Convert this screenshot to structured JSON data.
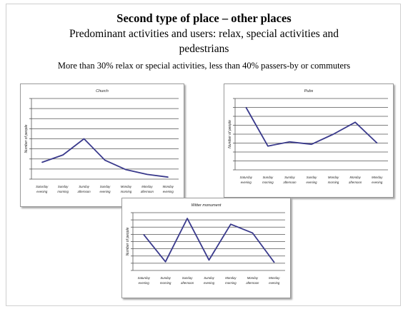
{
  "slide": {
    "title": "Second type of place – other places",
    "subtitle_line1": "Predominant activities and users: relax, special activities and",
    "subtitle_line2": "pedestrians",
    "caption": "More than 30% relax or special activities, less than 40% passers-by or commuters"
  },
  "colors": {
    "line": "#3a3a8c",
    "grid": "#555555",
    "frame_border": "#9a9a9a"
  },
  "chart_data": [
    {
      "type": "line",
      "title": "Church",
      "ylabel": "Number of people",
      "categories": [
        [
          "Saturday",
          "evening"
        ],
        [
          "Sunday",
          "morning"
        ],
        [
          "Sunday",
          "afternoon"
        ],
        [
          "Sunday",
          "evening"
        ],
        [
          "Monday",
          "morning"
        ],
        [
          "Monday",
          "afternoon"
        ],
        [
          "Monday",
          "evening"
        ]
      ],
      "values": [
        2.5,
        3.6,
        6.0,
        2.8,
        1.4,
        0.7,
        0.3
      ],
      "ylim": [
        0,
        12
      ],
      "grid": true
    },
    {
      "type": "line",
      "title": "Pubs",
      "ylabel": "Number of people",
      "categories": [
        [
          "Saturday",
          "evening"
        ],
        [
          "Sunday",
          "morning"
        ],
        [
          "Sunday",
          "afternoon"
        ],
        [
          "Sunday",
          "evening"
        ],
        [
          "Monday",
          "morning"
        ],
        [
          "Monday",
          "afternoon"
        ],
        [
          "Monday",
          "evening"
        ]
      ],
      "values": [
        10.5,
        4.0,
        4.7,
        4.3,
        6.0,
        8.0,
        4.5
      ],
      "ylim": [
        0,
        12
      ],
      "grid": true
    },
    {
      "type": "line",
      "title": "Witter monument",
      "ylabel": "Number of people",
      "categories": [
        [
          "Saturday",
          "evening"
        ],
        [
          "Sunday",
          "morning"
        ],
        [
          "Sunday",
          "afternoon"
        ],
        [
          "Sunday",
          "evening"
        ],
        [
          "Monday",
          "morning"
        ],
        [
          "Monday",
          "afternoon"
        ],
        [
          "Monday",
          "evening"
        ]
      ],
      "values": [
        6.2,
        1.5,
        9.0,
        1.8,
        8.0,
        6.5,
        1.4
      ],
      "ylim": [
        0,
        10
      ],
      "grid": true
    }
  ]
}
